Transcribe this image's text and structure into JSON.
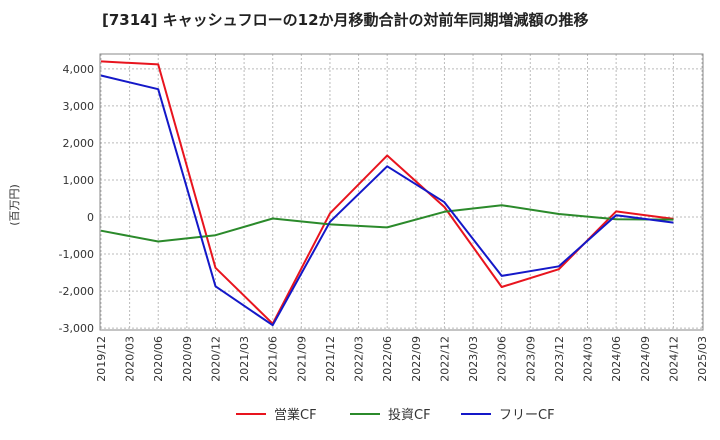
{
  "chart_data": {
    "type": "line",
    "title": "[7314]  キャッシュフローの12か月移動合計の対前年同期増減額の推移",
    "ylabel": "(百万円)",
    "xlabel": "",
    "x": [
      "2019/12",
      "2020/03",
      "2020/06",
      "2020/09",
      "2020/12",
      "2021/03",
      "2021/06",
      "2021/09",
      "2021/12",
      "2022/03",
      "2022/06",
      "2022/09",
      "2022/12",
      "2023/03",
      "2023/06",
      "2023/09",
      "2023/12",
      "2024/03",
      "2024/06",
      "2024/09",
      "2024/12",
      "2025/03"
    ],
    "yticks": [
      4000,
      3000,
      2000,
      1000,
      0,
      -1000,
      -2000,
      -3000
    ],
    "ytick_labels": [
      "4,000",
      "3,000",
      "2,000",
      "1,000",
      "0",
      "-1,000",
      "-2,000",
      "-3,000"
    ],
    "ylim": [
      -3050,
      4400
    ],
    "grid": true,
    "legend_position": "bottom",
    "series": [
      {
        "name": "営業CF",
        "color": "#e8141e",
        "points": [
          [
            "2019/12",
            4200
          ],
          [
            "2020/06",
            4120
          ],
          [
            "2020/12",
            -1370
          ],
          [
            "2021/06",
            -2880
          ],
          [
            "2021/12",
            100
          ],
          [
            "2022/06",
            1660
          ],
          [
            "2022/12",
            270
          ],
          [
            "2023/06",
            -1890
          ],
          [
            "2023/12",
            -1410
          ],
          [
            "2024/06",
            150
          ],
          [
            "2024/12",
            -50
          ]
        ]
      },
      {
        "name": "投資CF",
        "color": "#2b8a2b",
        "points": [
          [
            "2019/12",
            -370
          ],
          [
            "2020/06",
            -660
          ],
          [
            "2020/12",
            -490
          ],
          [
            "2021/06",
            -40
          ],
          [
            "2021/12",
            -200
          ],
          [
            "2022/06",
            -280
          ],
          [
            "2022/12",
            140
          ],
          [
            "2023/06",
            320
          ],
          [
            "2023/12",
            80
          ],
          [
            "2024/06",
            -60
          ],
          [
            "2024/12",
            -70
          ]
        ]
      },
      {
        "name": "フリーCF",
        "color": "#1418c8",
        "points": [
          [
            "2019/12",
            3820
          ],
          [
            "2020/06",
            3450
          ],
          [
            "2020/12",
            -1870
          ],
          [
            "2021/06",
            -2920
          ],
          [
            "2021/12",
            -130
          ],
          [
            "2022/06",
            1370
          ],
          [
            "2022/12",
            400
          ],
          [
            "2023/06",
            -1590
          ],
          [
            "2023/12",
            -1330
          ],
          [
            "2024/06",
            50
          ],
          [
            "2024/12",
            -150
          ]
        ]
      }
    ]
  }
}
